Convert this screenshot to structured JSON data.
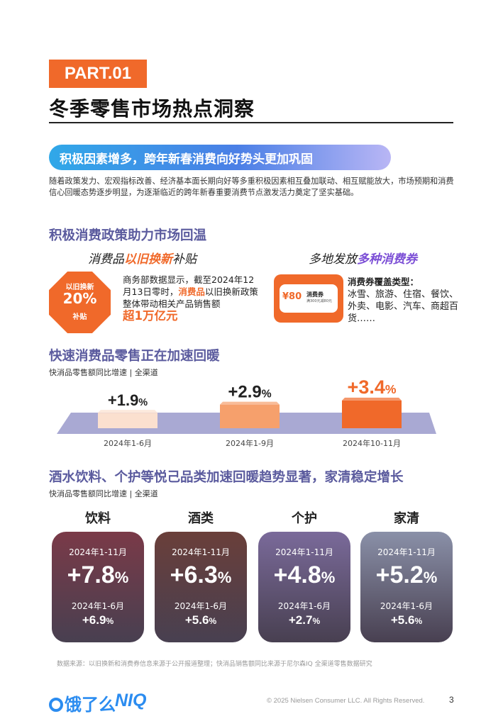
{
  "part_tag": "PART.01",
  "page_title": "冬季零售市场热点洞察",
  "banner": "积极因素增多，跨年新春消费向好势头更加巩固",
  "intro": "随着政策发力、宏观指标改善、经济基本面长期向好等多重积极因素相互叠加联动、相互赋能放大，市场预期和消费信心回暖态势逐步明显，为逐渐临近的跨年新春重要消费节点激发活力奠定了坚实基础。",
  "policy": {
    "title": "积极消费政策助力市场回温",
    "left_head_pre": "消费品",
    "left_head_hl": "以旧换新",
    "left_head_post": "补贴",
    "badge_line1": "以旧换新",
    "badge_line2": "20%",
    "badge_line3": "补贴",
    "text_pre": "商务部数据显示，截至2024年12月13日零时，",
    "text_hl": "消费品",
    "text_post": "以旧换新政策整体带动相关产品销售额",
    "text_big": "超1万亿元",
    "right_head_pre": "多地发放",
    "right_head_hl": "多种消费券",
    "coupon_amount": "¥80",
    "coupon_name": "消费券",
    "coupon_cond": "满300元减80元",
    "coverage_title": "消费券覆盖类型：",
    "coverage_items": "冰雪、旅游、住宿、餐饮、外卖、电影、汽车、商超百货……"
  },
  "fmcg": {
    "title": "快速消费品零售正在加速回暖",
    "subtitle": "快消品零售额同比增速 | 全渠道"
  },
  "chart_data": {
    "type": "bar",
    "title": "快速消费品零售正在加速回暖",
    "subtitle": "快消品零售额同比增速 | 全渠道",
    "categories": [
      "2024年1-6月",
      "2024年1-9月",
      "2024年10-11月"
    ],
    "values": [
      1.9,
      2.9,
      3.4
    ],
    "value_labels": [
      "+1.9",
      "+2.9",
      "+3.4"
    ],
    "unit": "%",
    "colors": [
      "#fbe0cf",
      "#f6a06c",
      "#f0692a"
    ]
  },
  "categories_section": {
    "title": "酒水饮料、个护等悦己品类加速回暖趋势显著，家清稳定增长",
    "subtitle": "快消品零售额同比增速 | 全渠道",
    "period1": "2024年1-11月",
    "period2": "2024年1-6月",
    "unit": "%",
    "cards": [
      {
        "name": "饮料",
        "big": "+7.8",
        "small": "+6.9",
        "bg": "#7a3a48"
      },
      {
        "name": "酒类",
        "big": "+6.3",
        "small": "+5.6",
        "bg": "#6a3f3a"
      },
      {
        "name": "个护",
        "big": "+4.8",
        "small": "+2.7",
        "bg": "#7a6a9a"
      },
      {
        "name": "家清",
        "big": "+5.2",
        "small": "+5.6",
        "bg": "#8a90a8"
      }
    ]
  },
  "source": "数据来源：以旧换新和消费券信息来源于公开报道整理；快消品销售额同比来源于尼尔森IQ 全渠道零售数据研究",
  "footer": {
    "logo_eleme": "饿了么",
    "logo_niq": "NIQ",
    "copyright": "© 2025 Nielsen Consumer LLC. All Rights Reserved.",
    "page": "3"
  }
}
